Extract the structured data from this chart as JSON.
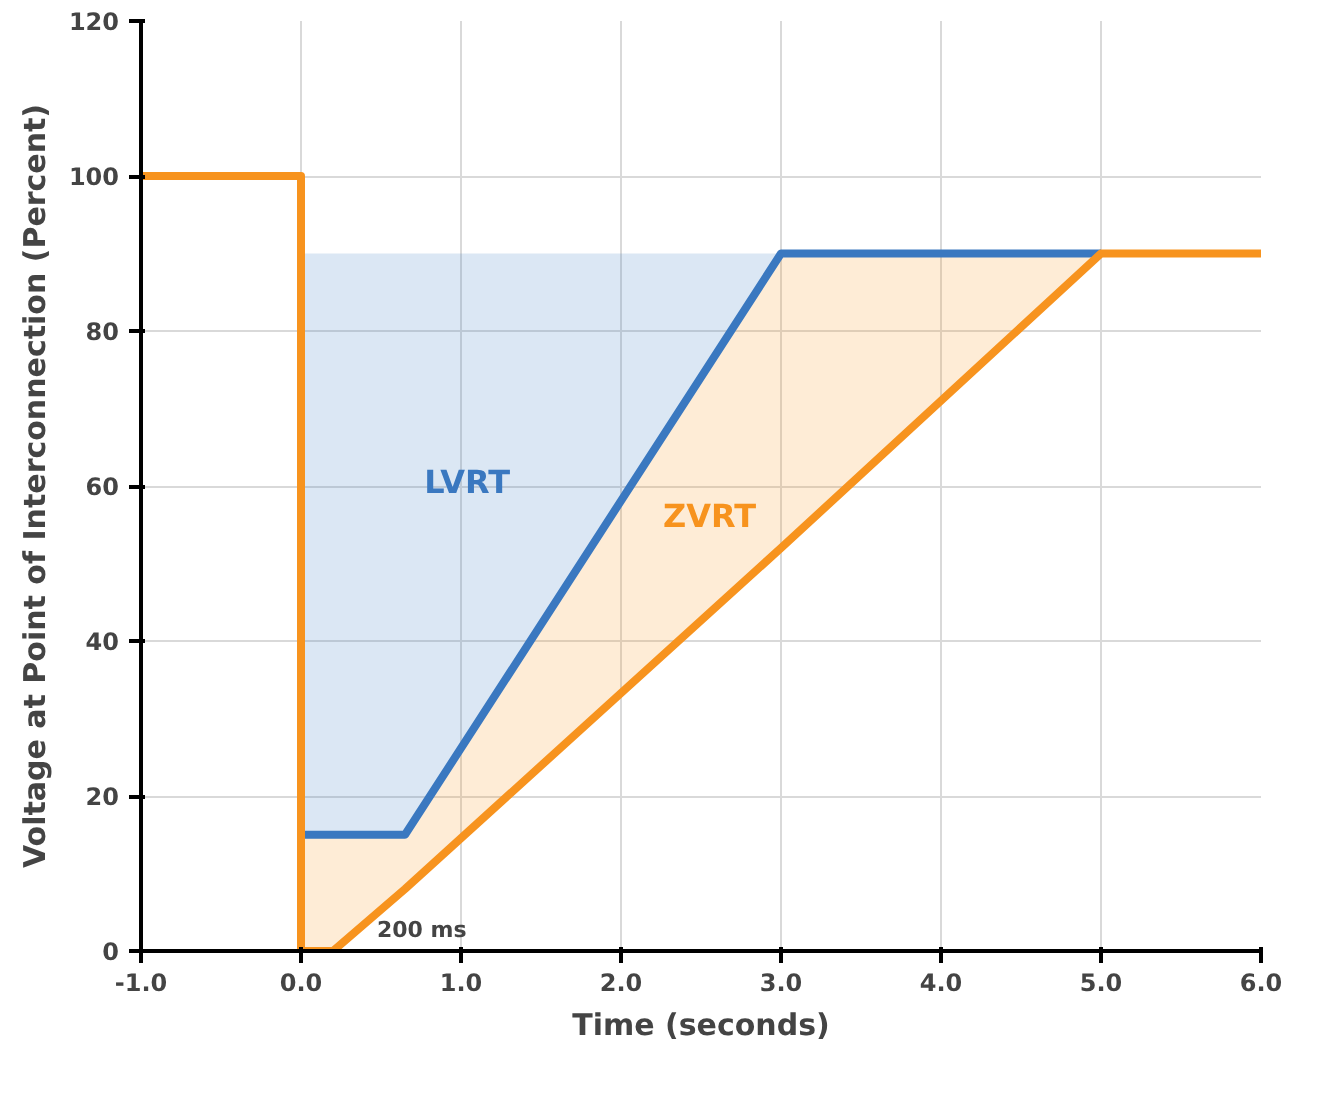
{
  "chart_data": {
    "type": "line",
    "xlabel": "Time (seconds)",
    "ylabel": "Voltage at Point of Interconnection (Percent)",
    "xlim": [
      -1,
      6
    ],
    "ylim": [
      0,
      120
    ],
    "xticks": [
      {
        "value": -1,
        "label": "-1.0"
      },
      {
        "value": 0,
        "label": "0.0"
      },
      {
        "value": 1,
        "label": "1.0"
      },
      {
        "value": 2,
        "label": "2.0"
      },
      {
        "value": 3,
        "label": "3.0"
      },
      {
        "value": 4,
        "label": "4.0"
      },
      {
        "value": 5,
        "label": "5.0"
      },
      {
        "value": 6,
        "label": "6.0"
      }
    ],
    "yticks": [
      0,
      20,
      40,
      60,
      80,
      100,
      120
    ],
    "grid": true,
    "legend": false,
    "marker": "none",
    "line_style": "solid",
    "series": [
      {
        "name": "LVRT",
        "color": "#3a78c0",
        "x": [
          0,
          0.65,
          3,
          5
        ],
        "values": [
          15,
          15,
          90,
          90
        ],
        "lower": [
          15,
          15,
          90,
          90
        ],
        "upper": [
          90,
          90,
          90,
          90
        ]
      },
      {
        "name": "ZVRT",
        "color": "#f7931e",
        "x": [
          -1,
          0,
          0,
          0.2,
          0.65,
          3,
          5,
          6
        ],
        "values": [
          100,
          100,
          0,
          0,
          8,
          52,
          90,
          90
        ],
        "lower": [
          null,
          null,
          0,
          0,
          8,
          52,
          90,
          90
        ],
        "upper": [
          null,
          null,
          15,
          15,
          15,
          90,
          90,
          90
        ]
      }
    ],
    "annotations": [
      {
        "text": "200 ms",
        "x": 0.2,
        "y": 0
      }
    ]
  }
}
